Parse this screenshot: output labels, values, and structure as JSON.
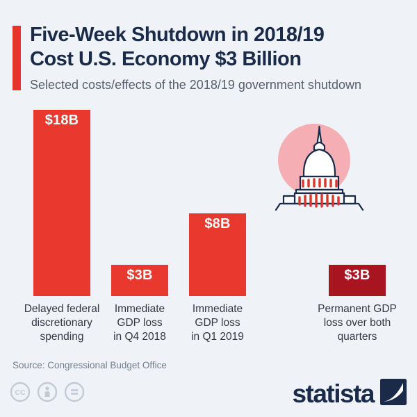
{
  "header": {
    "title_line1": "Five-Week Shutdown in 2018/19",
    "title_line2": "Cost U.S. Economy $3 Billion",
    "subtitle": "Selected costs/effects of the 2018/19 government shutdown"
  },
  "chart_data": {
    "type": "bar",
    "title": "Five-Week Shutdown in 2018/19 Cost U.S. Economy $3 Billion",
    "subtitle": "Selected costs/effects of the 2018/19 government shutdown",
    "unit": "billion U.S. dollars",
    "ylim": [
      0,
      18
    ],
    "gridlines": false,
    "legend": false,
    "categories": [
      "Delayed federal discretionary spending",
      "Immediate GDP loss in Q4 2018",
      "Immediate GDP loss in Q1 2019",
      "Permanent GDP loss over both quarters"
    ],
    "values": [
      18,
      3,
      8,
      3
    ],
    "bars": [
      {
        "value": 18,
        "value_label": "$18B",
        "label_lines": "Delayed federal\ndiscretionary\nspending",
        "color": "#e9382d"
      },
      {
        "value": 3,
        "value_label": "$3B",
        "label_lines": "Immediate\nGDP loss\nin Q4 2018",
        "color": "#e9382d"
      },
      {
        "value": 8,
        "value_label": "$8B",
        "label_lines": "Immediate\nGDP loss\nin Q1 2019",
        "color": "#e9382d"
      },
      {
        "value": 3,
        "value_label": "$3B",
        "label_lines": "Permanent GDP\nloss over both\nquarters",
        "color": "#a81420"
      }
    ]
  },
  "colors": {
    "background": "#eff3f8",
    "navy": "#1a2b4a",
    "red": "#e9382d",
    "dark_red": "#a81420",
    "pink": "#f4aeb4",
    "dash_red": "#d8362c",
    "license_gray": "#c3cad4"
  },
  "footer": {
    "source": "Source: Congressional Budget Office",
    "brand": "statista",
    "license_icons": [
      "cc-icon",
      "attribution-icon",
      "no-derivatives-icon"
    ]
  }
}
